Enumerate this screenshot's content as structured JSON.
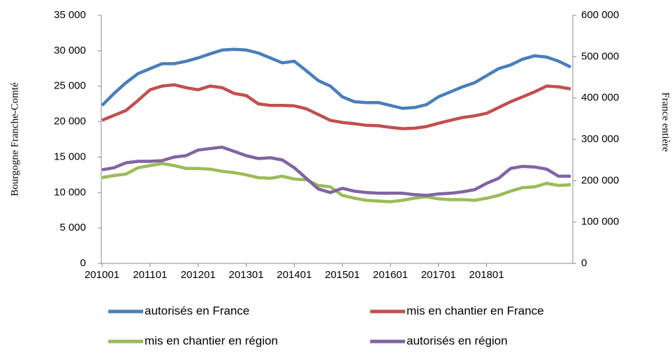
{
  "chart_data": {
    "type": "line",
    "y_label": "Bourgogne Franche-Comté",
    "y2_label": "France entière",
    "categories": [
      "201001",
      null,
      null,
      null,
      "201101",
      null,
      null,
      null,
      "201201",
      null,
      null,
      null,
      "201301",
      null,
      null,
      null,
      "201401",
      null,
      null,
      null,
      "201501",
      null,
      null,
      null,
      "201601",
      null,
      null,
      null,
      "201701",
      null,
      null,
      null,
      "201801",
      null,
      null,
      null,
      null,
      null,
      null,
      null
    ],
    "ylim": [
      0,
      35000
    ],
    "yticks": [
      0,
      {
        "value": 5000,
        "label": "5 000"
      },
      {
        "value": 10000,
        "label": "10 000"
      },
      {
        "value": 15000,
        "label": "15 000"
      },
      {
        "value": 20000,
        "label": "20 000"
      },
      {
        "value": 25000,
        "label": "25 000"
      },
      {
        "value": 30000,
        "label": "30 000"
      },
      {
        "value": 35000,
        "label": "35 000"
      }
    ],
    "y2lim": [
      0,
      600000
    ],
    "y2ticks": [
      0,
      {
        "value": 100000,
        "label": "100 000"
      },
      {
        "value": 200000,
        "label": "200 000"
      },
      {
        "value": 300000,
        "label": "300 000"
      },
      {
        "value": 400000,
        "label": "400 000"
      },
      {
        "value": 500000,
        "label": "500 000"
      },
      {
        "value": 600000,
        "label": "600 000"
      }
    ],
    "series": [
      {
        "name": "autorisés en France",
        "color": "#4a7ebb",
        "axis": "y2",
        "values": [
          382000,
          411000,
          437000,
          459000,
          471000,
          483000,
          483000,
          489000,
          497000,
          507000,
          516000,
          518000,
          516000,
          509000,
          497000,
          485000,
          489000,
          466000,
          442000,
          429000,
          403000,
          391000,
          389000,
          389000,
          382000,
          375000,
          377000,
          384000,
          403000,
          415000,
          427000,
          437000,
          454000,
          471000,
          480000,
          494000,
          502000,
          499000,
          489000,
          475000
        ]
      },
      {
        "name": "mis en chantier en France",
        "color": "#c0504d",
        "axis": "y2",
        "values": [
          346000,
          358000,
          370000,
          394000,
          420000,
          429000,
          432000,
          425000,
          420000,
          429000,
          425000,
          411000,
          406000,
          386000,
          382000,
          382000,
          381000,
          374000,
          360000,
          346000,
          341000,
          338000,
          334000,
          333000,
          329000,
          326000,
          327000,
          331000,
          339000,
          346000,
          353000,
          357000,
          363000,
          377000,
          391000,
          403000,
          415000,
          429000,
          427000,
          422000
        ]
      },
      {
        "name": "mis en chantier en région",
        "color": "#9bbb59",
        "values": [
          12100,
          12400,
          12600,
          13500,
          13800,
          14100,
          13800,
          13400,
          13400,
          13300,
          13000,
          12800,
          12500,
          12100,
          12000,
          12300,
          11900,
          11800,
          11000,
          10800,
          9600,
          9200,
          8900,
          8800,
          8700,
          8900,
          9200,
          9400,
          9100,
          9000,
          9000,
          8900,
          9200,
          9600,
          10200,
          10700,
          10800,
          11300,
          11000,
          11100
        ]
      },
      {
        "name": "autorisés en région",
        "color": "#8064a2",
        "values": [
          13200,
          13500,
          14200,
          14400,
          14400,
          14500,
          15000,
          15200,
          16000,
          16200,
          16400,
          15800,
          15200,
          14800,
          14900,
          14600,
          13500,
          12000,
          10500,
          10000,
          10600,
          10200,
          10000,
          9900,
          9900,
          9900,
          9700,
          9600,
          9800,
          9900,
          10100,
          10400,
          11300,
          12000,
          13400,
          13700,
          13600,
          13300,
          12300,
          12300
        ]
      }
    ]
  }
}
